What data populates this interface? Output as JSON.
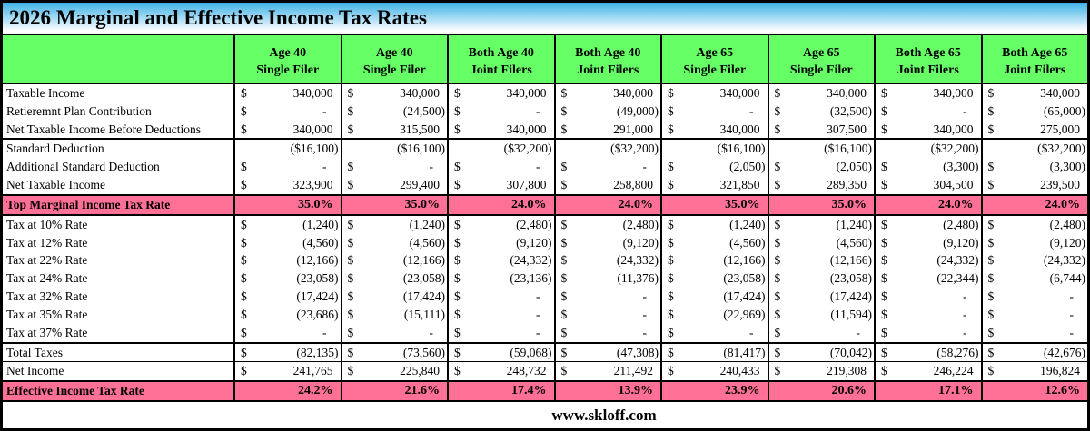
{
  "title": "2026 Marginal and Effective Income Tax Rates",
  "footer": {
    "text": "www.skloff.com"
  },
  "colors": {
    "header_green": "#66FF66",
    "highlight_pink": "#FF7096",
    "title_gradient_top": "#3FB2E6",
    "title_gradient_bottom": "#FFFFFF",
    "border": "#000000"
  },
  "table": {
    "columns": [
      {
        "line1": "Age 40",
        "line2": "Single Filer"
      },
      {
        "line1": "Age 40",
        "line2": "Single Filer"
      },
      {
        "line1": "Both Age 40",
        "line2": "Joint Filers"
      },
      {
        "line1": "Both Age 40",
        "line2": "Joint Filers"
      },
      {
        "line1": "Age 65",
        "line2": "Single Filer"
      },
      {
        "line1": "Age 65",
        "line2": "Single Filer"
      },
      {
        "line1": "Both Age 65",
        "line2": "Joint Filers"
      },
      {
        "line1": "Both Age 65",
        "line2": "Joint Filers"
      }
    ],
    "rows": [
      {
        "label": "Taxable Income",
        "kind": "money",
        "values": [
          "340,000",
          "340,000",
          "340,000",
          "340,000",
          "340,000",
          "340,000",
          "340,000",
          "340,000"
        ]
      },
      {
        "label": "Retieremnt Plan Contribution",
        "kind": "money",
        "values": [
          "-",
          "(24,500)",
          "-",
          "(49,000)",
          "-",
          "(32,500)",
          "-",
          "(65,000)"
        ]
      },
      {
        "label": "Net Taxable Income Before Deductions",
        "kind": "money",
        "values": [
          "340,000",
          "315,500",
          "340,000",
          "291,000",
          "340,000",
          "307,500",
          "340,000",
          "275,000"
        ]
      },
      {
        "label": "Standard Deduction",
        "kind": "plain",
        "values": [
          "($16,100)",
          "($16,100)",
          "($32,200)",
          "($32,200)",
          "($16,100)",
          "($16,100)",
          "($32,200)",
          "($32,200)"
        ]
      },
      {
        "label": "Additional Standard Deduction",
        "kind": "money",
        "values": [
          "-",
          "-",
          "-",
          "-",
          "(2,050)",
          "(2,050)",
          "(3,300)",
          "(3,300)"
        ]
      },
      {
        "label": "Net Taxable Income",
        "kind": "money",
        "values": [
          "323,900",
          "299,400",
          "307,800",
          "258,800",
          "321,850",
          "289,350",
          "304,500",
          "239,500"
        ]
      },
      {
        "label": "Top Marginal Income Tax Rate",
        "kind": "rate",
        "values": [
          "35.0%",
          "35.0%",
          "24.0%",
          "24.0%",
          "35.0%",
          "35.0%",
          "24.0%",
          "24.0%"
        ]
      },
      {
        "label": "Tax at 10% Rate",
        "kind": "money",
        "values": [
          "(1,240)",
          "(1,240)",
          "(2,480)",
          "(2,480)",
          "(1,240)",
          "(1,240)",
          "(2,480)",
          "(2,480)"
        ]
      },
      {
        "label": "Tax at 12% Rate",
        "kind": "money",
        "values": [
          "(4,560)",
          "(4,560)",
          "(9,120)",
          "(9,120)",
          "(4,560)",
          "(4,560)",
          "(9,120)",
          "(9,120)"
        ]
      },
      {
        "label": "Tax at 22% Rate",
        "kind": "money",
        "values": [
          "(12,166)",
          "(12,166)",
          "(24,332)",
          "(24,332)",
          "(12,166)",
          "(12,166)",
          "(24,332)",
          "(24,332)"
        ]
      },
      {
        "label": "Tax at 24% Rate",
        "kind": "money",
        "values": [
          "(23,058)",
          "(23,058)",
          "(23,136)",
          "(11,376)",
          "(23,058)",
          "(23,058)",
          "(22,344)",
          "(6,744)"
        ]
      },
      {
        "label": "Tax at 32% Rate",
        "kind": "money",
        "values": [
          "(17,424)",
          "(17,424)",
          "-",
          "-",
          "(17,424)",
          "(17,424)",
          "-",
          "-"
        ]
      },
      {
        "label": "Tax at 35% Rate",
        "kind": "money",
        "values": [
          "(23,686)",
          "(15,111)",
          "-",
          "-",
          "(22,969)",
          "(11,594)",
          "-",
          "-"
        ]
      },
      {
        "label": "Tax at 37% Rate",
        "kind": "money",
        "values": [
          "-",
          "-",
          "-",
          "-",
          "-",
          "-",
          "-",
          "-"
        ]
      },
      {
        "label": "Total Taxes",
        "kind": "money",
        "values": [
          "(82,135)",
          "(73,560)",
          "(59,068)",
          "(47,308)",
          "(81,417)",
          "(70,042)",
          "(58,276)",
          "(42,676)"
        ]
      },
      {
        "label": "Net Income",
        "kind": "money",
        "values": [
          "241,765",
          "225,840",
          "248,732",
          "211,492",
          "240,433",
          "219,308",
          "246,224",
          "196,824"
        ]
      },
      {
        "label": "Effective Income Tax Rate",
        "kind": "rate",
        "values": [
          "24.2%",
          "21.6%",
          "17.4%",
          "13.9%",
          "23.9%",
          "20.6%",
          "17.1%",
          "12.6%"
        ]
      }
    ]
  }
}
